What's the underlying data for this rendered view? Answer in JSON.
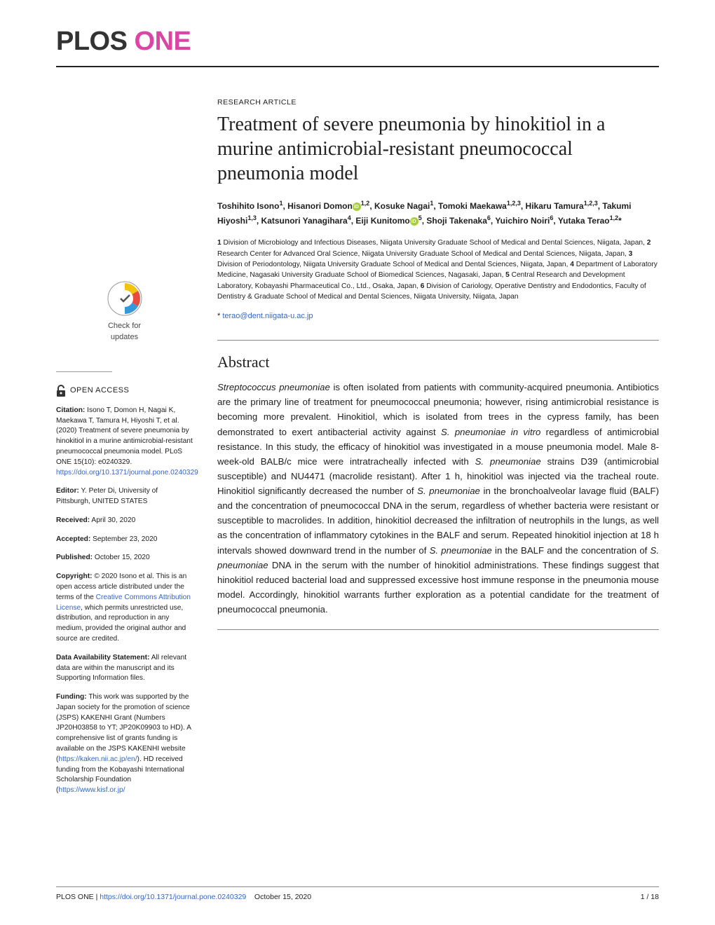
{
  "journal": {
    "plos": "PLOS",
    "one": "ONE"
  },
  "article_type": "RESEARCH ARTICLE",
  "title": "Treatment of severe pneumonia by hinokitiol in a murine antimicrobial-resistant pneumococcal pneumonia model",
  "authors_html": "Toshihito Isono<sup>1</sup>, Hisanori Domon<span class='orcid'></span><sup>1,2</sup>, Kosuke Nagai<sup>1</sup>, Tomoki Maekawa<sup>1,2,3</sup>, Hikaru Tamura<sup>1,2,3</sup>, Takumi Hiyoshi<sup>1,3</sup>, Katsunori Yanagihara<sup>4</sup>, Eiji Kunitomo<span class='orcid'></span><sup>5</sup>, Shoji Takenaka<sup>6</sup>, Yuichiro Noiri<sup>6</sup>, Yutaka Terao<sup>1,2</sup>*",
  "affiliations": "1 Division of Microbiology and Infectious Diseases, Niigata University Graduate School of Medical and Dental Sciences, Niigata, Japan, 2 Research Center for Advanced Oral Science, Niigata University Graduate School of Medical and Dental Sciences, Niigata, Japan, 3 Division of Periodontology, Niigata University Graduate School of Medical and Dental Sciences, Niigata, Japan, 4 Department of Laboratory Medicine, Nagasaki University Graduate School of Biomedical Sciences, Nagasaki, Japan, 5 Central Research and Development Laboratory, Kobayashi Pharmaceutical Co., Ltd., Osaka, Japan, 6 Division of Cariology, Operative Dentistry and Endodontics, Faculty of Dentistry & Graduate School of Medical and Dental Sciences, Niigata University, Niigata, Japan",
  "corresponding_email": "terao@dent.niigata-u.ac.jp",
  "abstract_heading": "Abstract",
  "abstract_body": "Streptococcus pneumoniae is often isolated from patients with community-acquired pneumonia. Antibiotics are the primary line of treatment for pneumococcal pneumonia; however, rising antimicrobial resistance is becoming more prevalent. Hinokitiol, which is isolated from trees in the cypress family, has been demonstrated to exert antibacterial activity against S. pneumoniae in vitro regardless of antimicrobial resistance. In this study, the efficacy of hinokitiol was investigated in a mouse pneumonia model. Male 8-week-old BALB/c mice were intratracheally infected with S. pneumoniae strains D39 (antimicrobial susceptible) and NU4471 (macrolide resistant). After 1 h, hinokitiol was injected via the tracheal route. Hinokitiol significantly decreased the number of S. pneumoniae in the bronchoalveolar lavage fluid (BALF) and the concentration of pneumococcal DNA in the serum, regardless of whether bacteria were resistant or susceptible to macrolides. In addition, hinokitiol decreased the infiltration of neutrophils in the lungs, as well as the concentration of inflammatory cytokines in the BALF and serum. Repeated hinokitiol injection at 18 h intervals showed downward trend in the number of S. pneumoniae in the BALF and the concentration of S. pneumoniae DNA in the serum with the number of hinokitiol administrations. These findings suggest that hinokitiol reduced bacterial load and suppressed excessive host immune response in the pneumonia mouse model. Accordingly, hinokitiol warrants further exploration as a potential candidate for the treatment of pneumococcal pneumonia.",
  "check_updates": "Check for\nupdates",
  "open_access": "OPEN ACCESS",
  "sidebar": {
    "citation_label": "Citation:",
    "citation_text": " Isono T, Domon H, Nagai K, Maekawa T, Tamura H, Hiyoshi T, et al. (2020) Treatment of severe pneumonia by hinokitiol in a murine antimicrobial-resistant pneumococcal pneumonia model. PLoS ONE 15(10): e0240329. ",
    "citation_link": "https://doi.org/10.1371/journal.pone.0240329",
    "editor_label": "Editor:",
    "editor_text": " Y. Peter Di, University of Pittsburgh, UNITED STATES",
    "received_label": "Received:",
    "received_text": " April 30, 2020",
    "accepted_label": "Accepted:",
    "accepted_text": " September 23, 2020",
    "published_label": "Published:",
    "published_text": " October 15, 2020",
    "copyright_label": "Copyright:",
    "copyright_text": " © 2020 Isono et al. This is an open access article distributed under the terms of the ",
    "copyright_link": "Creative Commons Attribution License",
    "copyright_text2": ", which permits unrestricted use, distribution, and reproduction in any medium, provided the original author and source are credited.",
    "data_label": "Data Availability Statement:",
    "data_text": " All relevant data are within the manuscript and its Supporting Information files.",
    "funding_label": "Funding:",
    "funding_text": " This work was supported by the Japan society for the promotion of science (JSPS) KAKENHI Grant (Numbers JP20H03858 to YT; JP20K09903 to HD). A comprehensive list of grants funding is available on the JSPS KAKENHI website (",
    "funding_link1": "https://kaken.nii.ac.jp/en/",
    "funding_text2": "). HD received funding from the Kobayashi International Scholarship Foundation (",
    "funding_link2": "https://www.kisf.or.jp/"
  },
  "footer": {
    "journal": "PLOS ONE | ",
    "doi": "https://doi.org/10.1371/journal.pone.0240329",
    "date": "    October 15, 2020",
    "page": "1 / 18"
  },
  "colors": {
    "pink": "#d946a5",
    "link": "#3366c4",
    "text": "#202020",
    "orcid": "#A6CE39"
  }
}
